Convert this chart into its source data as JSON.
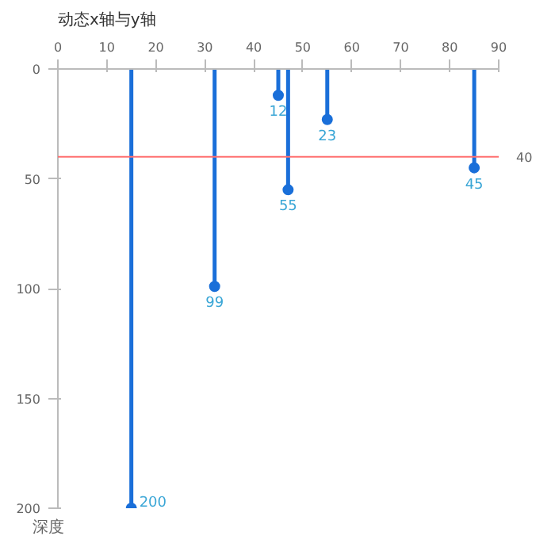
{
  "chart_data": {
    "type": "lollipop",
    "title": "动态x轴与y轴",
    "ylabel": "深度",
    "x": [
      15,
      32,
      45,
      47,
      55,
      85
    ],
    "series": [
      {
        "color": "#1a6fd9",
        "values": [
          200,
          99,
          12,
          55,
          23,
          45
        ]
      }
    ],
    "xlim": [
      0,
      90
    ],
    "xticks": [
      0,
      10,
      20,
      30,
      40,
      50,
      60,
      70,
      80,
      90
    ],
    "ylim": [
      200,
      0
    ],
    "yticks": [
      0,
      50,
      100,
      150,
      200
    ],
    "ref_lines": [
      {
        "axis": "y",
        "value": 40,
        "label": "40",
        "color": "#ff7070"
      }
    ],
    "data_labels": true,
    "grid": false,
    "marker": "circle"
  }
}
